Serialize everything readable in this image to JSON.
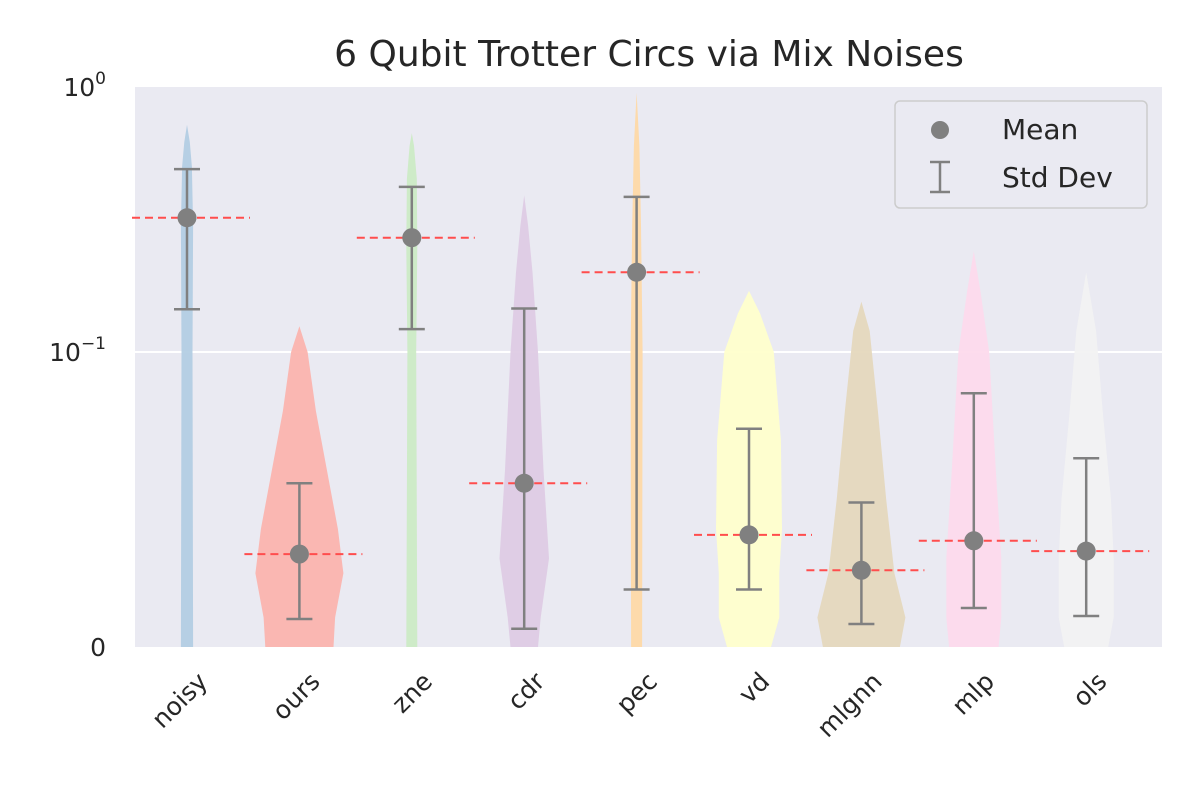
{
  "chart_data": {
    "type": "violin",
    "title": "6 Qubit Trotter Circs via Mix Noises",
    "xlabel": "",
    "ylabel": "",
    "yscale": "symlog",
    "ylim": [
      0,
      1
    ],
    "yticks": [
      {
        "value": 0,
        "label": "0"
      },
      {
        "value": 0.1,
        "label": "10",
        "exp": "−1"
      },
      {
        "value": 1,
        "label": "10",
        "exp": "0"
      }
    ],
    "grid": true,
    "legend_position": "top-right",
    "legend": {
      "mean_label": "Mean",
      "std_label": "Std Dev"
    },
    "categories": [
      "noisy",
      "ours",
      "zne",
      "cdr",
      "pec",
      "vd",
      "mlgnn",
      "mlp",
      "ols"
    ],
    "colors": [
      "#b3cde3",
      "#fbb4ae",
      "#ccebc5",
      "#decbe4",
      "#fed9a6",
      "#ffffcc",
      "#e5d8bd",
      "#fddaec",
      "#f2f2f2"
    ],
    "mean_marker_color": "#808080",
    "mean_line_color": "#ff4d4d",
    "series": [
      {
        "category": "noisy",
        "mean": 0.321,
        "std_low": 0.145,
        "std_high": 0.49,
        "max": 0.72,
        "profile": [
          [
            0,
            0.11
          ],
          [
            0.1,
            0.1
          ],
          [
            0.3,
            0.11
          ],
          [
            0.5,
            0.09
          ],
          [
            0.62,
            0.05
          ],
          [
            0.72,
            0
          ]
        ]
      },
      {
        "category": "ours",
        "mean": 0.0315,
        "std_low": 0.0095,
        "std_high": 0.0555,
        "max": 0.125,
        "profile": [
          [
            0,
            0.62
          ],
          [
            0.01,
            0.65
          ],
          [
            0.025,
            0.8
          ],
          [
            0.04,
            0.7
          ],
          [
            0.06,
            0.5
          ],
          [
            0.08,
            0.3
          ],
          [
            0.1,
            0.15
          ],
          [
            0.125,
            0
          ]
        ]
      },
      {
        "category": "zne",
        "mean": 0.27,
        "std_low": 0.122,
        "std_high": 0.42,
        "max": 0.67,
        "profile": [
          [
            0,
            0.1
          ],
          [
            0.1,
            0.08
          ],
          [
            0.25,
            0.1
          ],
          [
            0.45,
            0.09
          ],
          [
            0.6,
            0.04
          ],
          [
            0.67,
            0
          ]
        ]
      },
      {
        "category": "cdr",
        "mean": 0.0555,
        "std_low": 0.0062,
        "std_high": 0.146,
        "max": 0.39,
        "profile": [
          [
            0,
            0.25
          ],
          [
            0.01,
            0.3
          ],
          [
            0.03,
            0.45
          ],
          [
            0.06,
            0.35
          ],
          [
            0.1,
            0.25
          ],
          [
            0.2,
            0.15
          ],
          [
            0.3,
            0.07
          ],
          [
            0.39,
            0
          ]
        ]
      },
      {
        "category": "pec",
        "mean": 0.2,
        "std_low": 0.0195,
        "std_high": 0.385,
        "max": 0.95,
        "profile": [
          [
            0,
            0.1
          ],
          [
            0.1,
            0.11
          ],
          [
            0.3,
            0.08
          ],
          [
            0.6,
            0.05
          ],
          [
            0.95,
            0
          ]
        ]
      },
      {
        "category": "vd",
        "mean": 0.038,
        "std_low": 0.0195,
        "std_high": 0.074,
        "max": 0.17,
        "profile": [
          [
            0,
            0.4
          ],
          [
            0.01,
            0.55
          ],
          [
            0.025,
            0.55
          ],
          [
            0.04,
            0.6
          ],
          [
            0.07,
            0.58
          ],
          [
            0.1,
            0.45
          ],
          [
            0.14,
            0.2
          ],
          [
            0.17,
            0
          ]
        ]
      },
      {
        "category": "mlgnn",
        "mean": 0.026,
        "std_low": 0.0078,
        "std_high": 0.049,
        "max": 0.155,
        "profile": [
          [
            0,
            0.7
          ],
          [
            0.01,
            0.8
          ],
          [
            0.025,
            0.6
          ],
          [
            0.05,
            0.45
          ],
          [
            0.08,
            0.3
          ],
          [
            0.12,
            0.15
          ],
          [
            0.155,
            0
          ]
        ]
      },
      {
        "category": "mlp",
        "mean": 0.036,
        "std_low": 0.0132,
        "std_high": 0.086,
        "max": 0.24,
        "profile": [
          [
            0,
            0.45
          ],
          [
            0.01,
            0.5
          ],
          [
            0.03,
            0.5
          ],
          [
            0.06,
            0.4
          ],
          [
            0.1,
            0.28
          ],
          [
            0.17,
            0.12
          ],
          [
            0.24,
            0
          ]
        ]
      },
      {
        "category": "ols",
        "mean": 0.0325,
        "std_low": 0.0105,
        "std_high": 0.064,
        "max": 0.2,
        "profile": [
          [
            0,
            0.4
          ],
          [
            0.01,
            0.5
          ],
          [
            0.03,
            0.5
          ],
          [
            0.05,
            0.45
          ],
          [
            0.08,
            0.3
          ],
          [
            0.12,
            0.18
          ],
          [
            0.2,
            0
          ]
        ]
      }
    ]
  }
}
